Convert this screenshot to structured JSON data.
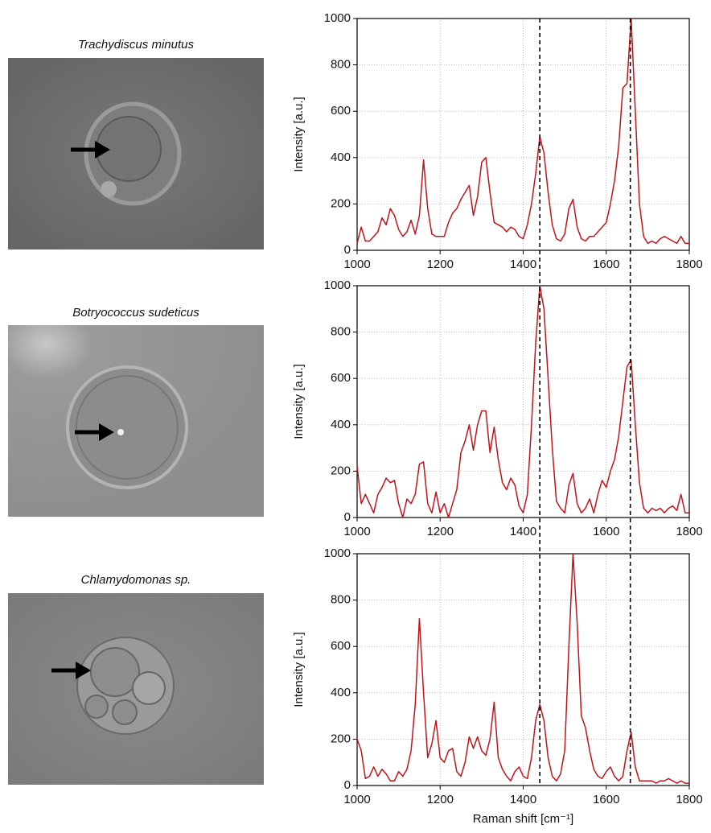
{
  "chart_data": [
    {
      "type": "line",
      "title": "Trachydiscus minutus",
      "ylabel": "Intensity [a.u.]",
      "xlim": [
        1000,
        1800
      ],
      "ylim": [
        0,
        1000
      ],
      "xticks": [
        1000,
        1200,
        1400,
        1600,
        1800
      ],
      "yticks": [
        0,
        200,
        400,
        600,
        800,
        1000
      ],
      "grid": true,
      "vlines": [
        1440,
        1658
      ],
      "x": [
        1000,
        1010,
        1020,
        1030,
        1040,
        1050,
        1060,
        1070,
        1080,
        1090,
        1100,
        1110,
        1120,
        1130,
        1140,
        1150,
        1160,
        1170,
        1180,
        1190,
        1200,
        1210,
        1220,
        1230,
        1240,
        1250,
        1260,
        1270,
        1280,
        1290,
        1300,
        1310,
        1320,
        1330,
        1340,
        1350,
        1360,
        1370,
        1380,
        1390,
        1400,
        1410,
        1420,
        1430,
        1440,
        1450,
        1460,
        1470,
        1480,
        1490,
        1500,
        1510,
        1520,
        1530,
        1540,
        1550,
        1560,
        1570,
        1580,
        1590,
        1600,
        1610,
        1620,
        1630,
        1640,
        1650,
        1660,
        1670,
        1680,
        1690,
        1700,
        1710,
        1720,
        1730,
        1740,
        1750,
        1760,
        1770,
        1780,
        1790,
        1800
      ],
      "series": [
        {
          "color": "#c0141b",
          "values": [
            30,
            100,
            40,
            40,
            60,
            80,
            140,
            110,
            180,
            150,
            90,
            60,
            80,
            130,
            70,
            150,
            390,
            180,
            70,
            60,
            60,
            60,
            120,
            160,
            180,
            220,
            250,
            280,
            150,
            230,
            380,
            400,
            250,
            120,
            110,
            100,
            80,
            100,
            90,
            60,
            50,
            110,
            200,
            330,
            490,
            420,
            250,
            110,
            50,
            40,
            70,
            180,
            220,
            100,
            50,
            40,
            60,
            60,
            80,
            100,
            120,
            200,
            300,
            450,
            700,
            720,
            1000,
            600,
            200,
            60,
            30,
            40,
            30,
            50,
            60,
            50,
            40,
            30,
            60,
            30,
            30
          ]
        }
      ]
    },
    {
      "type": "line",
      "title": "Botryococcus sudeticus",
      "ylabel": "Intensity [a.u.]",
      "xlim": [
        1000,
        1800
      ],
      "ylim": [
        0,
        1000
      ],
      "xticks": [
        1000,
        1200,
        1400,
        1600,
        1800
      ],
      "yticks": [
        0,
        200,
        400,
        600,
        800,
        1000
      ],
      "grid": true,
      "x": [
        1000,
        1010,
        1020,
        1030,
        1040,
        1050,
        1060,
        1070,
        1080,
        1090,
        1100,
        1110,
        1120,
        1130,
        1140,
        1150,
        1160,
        1170,
        1180,
        1190,
        1200,
        1210,
        1220,
        1230,
        1240,
        1250,
        1260,
        1270,
        1280,
        1290,
        1300,
        1310,
        1320,
        1330,
        1340,
        1350,
        1360,
        1370,
        1380,
        1390,
        1400,
        1410,
        1420,
        1430,
        1440,
        1450,
        1460,
        1470,
        1480,
        1490,
        1500,
        1510,
        1520,
        1530,
        1540,
        1550,
        1560,
        1570,
        1580,
        1590,
        1600,
        1610,
        1620,
        1630,
        1640,
        1650,
        1660,
        1670,
        1680,
        1690,
        1700,
        1710,
        1720,
        1730,
        1740,
        1750,
        1760,
        1770,
        1780,
        1790,
        1800
      ],
      "series": [
        {
          "color": "#c0141b",
          "values": [
            220,
            60,
            100,
            60,
            20,
            100,
            130,
            170,
            150,
            160,
            60,
            0,
            80,
            60,
            100,
            230,
            240,
            60,
            20,
            110,
            20,
            60,
            0,
            60,
            120,
            280,
            330,
            400,
            290,
            400,
            460,
            460,
            280,
            390,
            250,
            150,
            120,
            170,
            140,
            50,
            20,
            100,
            400,
            750,
            1000,
            900,
            600,
            300,
            70,
            40,
            20,
            140,
            190,
            60,
            20,
            40,
            80,
            20,
            100,
            160,
            130,
            200,
            250,
            350,
            500,
            650,
            680,
            400,
            150,
            40,
            20,
            40,
            30,
            40,
            20,
            40,
            50,
            30,
            100,
            20,
            20
          ]
        }
      ]
    },
    {
      "type": "line",
      "title": "Chlamydomonas sp.",
      "ylabel": "Intensity [a.u.]",
      "xlabel": "Raman shift [cm⁻¹]",
      "xlim": [
        1000,
        1800
      ],
      "ylim": [
        0,
        1000
      ],
      "xticks": [
        1000,
        1200,
        1400,
        1600,
        1800
      ],
      "yticks": [
        0,
        200,
        400,
        600,
        800,
        1000
      ],
      "grid": true,
      "x": [
        1000,
        1010,
        1020,
        1030,
        1040,
        1050,
        1060,
        1070,
        1080,
        1090,
        1100,
        1110,
        1120,
        1130,
        1140,
        1150,
        1160,
        1170,
        1180,
        1190,
        1200,
        1210,
        1220,
        1230,
        1240,
        1250,
        1260,
        1270,
        1280,
        1290,
        1300,
        1310,
        1320,
        1330,
        1340,
        1350,
        1360,
        1370,
        1380,
        1390,
        1400,
        1410,
        1420,
        1430,
        1440,
        1450,
        1460,
        1470,
        1480,
        1490,
        1500,
        1510,
        1520,
        1530,
        1540,
        1550,
        1560,
        1570,
        1580,
        1590,
        1600,
        1610,
        1620,
        1630,
        1640,
        1650,
        1660,
        1670,
        1680,
        1690,
        1700,
        1710,
        1720,
        1730,
        1740,
        1750,
        1760,
        1770,
        1780,
        1790,
        1800
      ],
      "series": [
        {
          "color": "#c0141b",
          "values": [
            200,
            150,
            30,
            40,
            80,
            40,
            70,
            50,
            20,
            20,
            60,
            40,
            70,
            150,
            350,
            720,
            400,
            120,
            180,
            280,
            120,
            100,
            150,
            160,
            60,
            40,
            100,
            210,
            160,
            210,
            150,
            130,
            200,
            360,
            120,
            70,
            40,
            20,
            60,
            80,
            40,
            30,
            120,
            280,
            350,
            280,
            120,
            40,
            20,
            50,
            150,
            600,
            1000,
            700,
            300,
            250,
            150,
            70,
            40,
            30,
            60,
            80,
            40,
            20,
            40,
            150,
            230,
            80,
            20,
            20,
            20,
            20,
            10,
            20,
            20,
            30,
            20,
            10,
            20,
            10,
            10
          ]
        }
      ]
    }
  ]
}
